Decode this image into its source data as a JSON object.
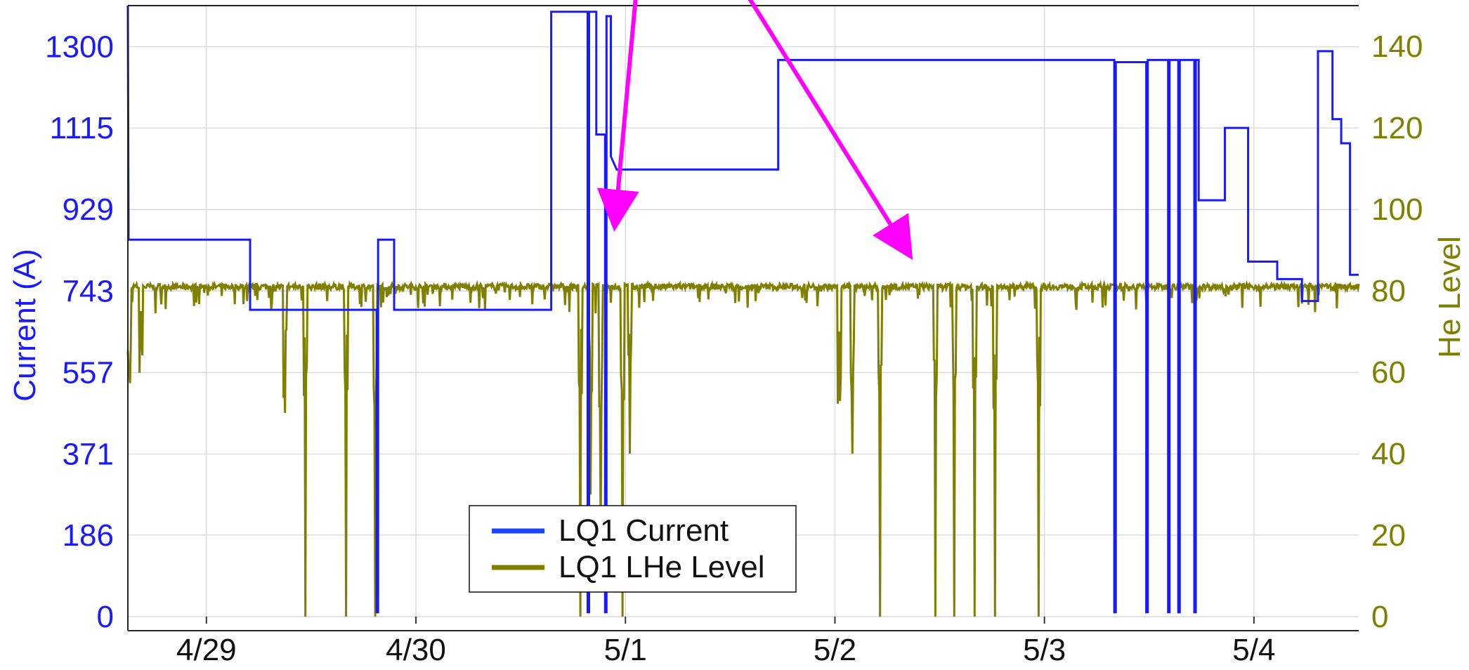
{
  "chart_data": {
    "type": "line",
    "title": "",
    "x_axis": {
      "type": "date",
      "range": [
        "2023-04-28 15:00",
        "2023-05-04 12:00"
      ],
      "ticks": [
        {
          "label": "4/29",
          "value": "2023-04-29 00:00"
        },
        {
          "label": "4/30",
          "value": "2023-04-30 00:00"
        },
        {
          "label": "5/1",
          "value": "2023-05-01 00:00"
        },
        {
          "label": "5/2",
          "value": "2023-05-02 00:00"
        },
        {
          "label": "5/3",
          "value": "2023-05-03 00:00"
        },
        {
          "label": "5/4",
          "value": "2023-05-04 00:00"
        }
      ]
    },
    "y_left": {
      "label": "Current (A)",
      "range": [
        0,
        1394
      ],
      "ticks": [
        0,
        186,
        371,
        557,
        743,
        929,
        1115,
        1300
      ]
    },
    "y_right": {
      "label": "He Level",
      "range": [
        0,
        150
      ],
      "ticks": [
        0,
        20,
        40,
        60,
        80,
        100,
        120,
        140
      ]
    },
    "grid": true,
    "legend": {
      "position": "bottom-center"
    },
    "series": [
      {
        "name": "LQ1 Current",
        "axis": "left",
        "color": "#1a1aff",
        "points": [
          [
            "2023-04-28 15:00",
            1394
          ],
          [
            "2023-04-28 15:05",
            860
          ],
          [
            "2023-04-29 05:00",
            860
          ],
          [
            "2023-04-29 05:00",
            700
          ],
          [
            "2023-04-29 19:30",
            700
          ],
          [
            "2023-04-29 19:30",
            10
          ],
          [
            "2023-04-29 19:40",
            10
          ],
          [
            "2023-04-29 19:40",
            860
          ],
          [
            "2023-04-29 21:30",
            860
          ],
          [
            "2023-04-29 21:30",
            700
          ],
          [
            "2023-04-30 15:30",
            700
          ],
          [
            "2023-04-30 15:30",
            1380
          ],
          [
            "2023-04-30 19:40",
            1380
          ],
          [
            "2023-04-30 19:40",
            10
          ],
          [
            "2023-04-30 19:50",
            10
          ],
          [
            "2023-04-30 19:50",
            1380
          ],
          [
            "2023-04-30 20:40",
            1380
          ],
          [
            "2023-04-30 20:40",
            1100
          ],
          [
            "2023-04-30 21:40",
            1100
          ],
          [
            "2023-04-30 21:40",
            10
          ],
          [
            "2023-04-30 21:50",
            10
          ],
          [
            "2023-04-30 21:50",
            1370
          ],
          [
            "2023-04-30 22:20",
            1370
          ],
          [
            "2023-04-30 22:20",
            1050
          ],
          [
            "2023-04-30 23:00",
            1020
          ],
          [
            "2023-05-01 17:30",
            1020
          ],
          [
            "2023-05-01 17:30",
            1270
          ],
          [
            "2023-05-03 08:00",
            1270
          ],
          [
            "2023-05-03 08:00",
            10
          ],
          [
            "2023-05-03 08:10",
            10
          ],
          [
            "2023-05-03 08:10",
            1265
          ],
          [
            "2023-05-03 11:40",
            1265
          ],
          [
            "2023-05-03 11:40",
            10
          ],
          [
            "2023-05-03 11:50",
            10
          ],
          [
            "2023-05-03 11:50",
            1270
          ],
          [
            "2023-05-03 14:10",
            1270
          ],
          [
            "2023-05-03 14:10",
            10
          ],
          [
            "2023-05-03 14:20",
            10
          ],
          [
            "2023-05-03 14:20",
            1270
          ],
          [
            "2023-05-03 15:20",
            1270
          ],
          [
            "2023-05-03 15:20",
            10
          ],
          [
            "2023-05-03 15:30",
            10
          ],
          [
            "2023-05-03 15:30",
            1270
          ],
          [
            "2023-05-03 17:10",
            1270
          ],
          [
            "2023-05-03 17:10",
            10
          ],
          [
            "2023-05-03 17:20",
            10
          ],
          [
            "2023-05-03 17:20",
            1270
          ],
          [
            "2023-05-03 17:40",
            1270
          ],
          [
            "2023-05-03 17:40",
            950
          ],
          [
            "2023-05-03 20:40",
            950
          ],
          [
            "2023-05-03 20:40",
            1115
          ],
          [
            "2023-05-03 23:20",
            1115
          ],
          [
            "2023-05-03 23:20",
            810
          ],
          [
            "2023-05-04 02:40",
            810
          ],
          [
            "2023-05-04 02:40",
            770
          ],
          [
            "2023-05-04 05:30",
            770
          ],
          [
            "2023-05-04 05:30",
            720
          ],
          [
            "2023-05-04 07:20",
            720
          ],
          [
            "2023-05-04 07:20",
            1290
          ],
          [
            "2023-05-04 09:00",
            1290
          ],
          [
            "2023-05-04 09:00",
            1135
          ],
          [
            "2023-05-04 10:00",
            1135
          ],
          [
            "2023-05-04 10:00",
            1080
          ],
          [
            "2023-05-04 11:00",
            1080
          ],
          [
            "2023-05-04 11:00",
            780
          ],
          [
            "2023-05-04 12:00",
            780
          ]
        ]
      },
      {
        "name": "LQ1 LHe Level",
        "axis": "right",
        "color": "#808000",
        "baseline": 81,
        "dips": [
          [
            "2023-04-28 15:10",
            60
          ],
          [
            "2023-04-28 16:30",
            75
          ],
          [
            "2023-04-29 09:00",
            50
          ],
          [
            "2023-04-29 11:20",
            0
          ],
          [
            "2023-04-29 16:00",
            0
          ],
          [
            "2023-04-29 19:20",
            0
          ],
          [
            "2023-04-30 18:50",
            0
          ],
          [
            "2023-04-30 20:00",
            30
          ],
          [
            "2023-04-30 21:10",
            20
          ],
          [
            "2023-04-30 23:40",
            0
          ],
          [
            "2023-05-01 00:30",
            40
          ],
          [
            "2023-05-02 00:30",
            70
          ],
          [
            "2023-05-02 02:00",
            40
          ],
          [
            "2023-05-02 05:10",
            0
          ],
          [
            "2023-05-02 11:30",
            0
          ],
          [
            "2023-05-02 13:40",
            0
          ],
          [
            "2023-05-02 16:00",
            0
          ],
          [
            "2023-05-02 18:20",
            0
          ],
          [
            "2023-05-02 23:20",
            0
          ]
        ]
      }
    ],
    "annotations": [
      {
        "type": "arrow",
        "color": "#ff00ff",
        "points_to": "2023-04-30 22:00"
      },
      {
        "type": "arrow",
        "color": "#ff00ff",
        "points_to": "2023-05-02 08:00"
      }
    ]
  },
  "legend_labels": {
    "current": "LQ1 Current",
    "lhe": "LQ1 LHe Level"
  }
}
